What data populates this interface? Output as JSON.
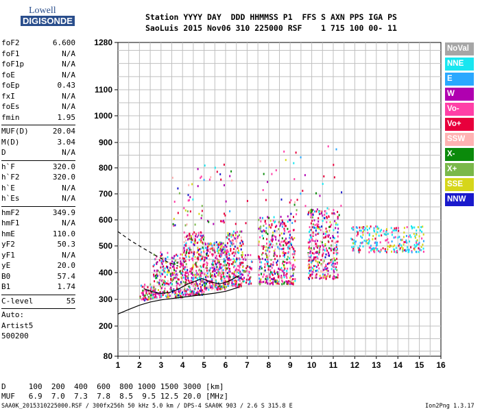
{
  "logo": {
    "line1": "Lowell",
    "line2": "DIGISONDE"
  },
  "header": {
    "line1": "Station YYYY DAY  DDD HHMMSS P1  FFS S AXN PPS IGA PS",
    "line2": "SaoLuis 2015 Nov06 310 225000 RSF    1 715 100 00- 11"
  },
  "params": [
    {
      "name": "foF2",
      "value": "6.600"
    },
    {
      "name": "foF1",
      "value": "N/A"
    },
    {
      "name": "foF1p",
      "value": "N/A"
    },
    {
      "name": "foE",
      "value": "N/A"
    },
    {
      "name": "foEp",
      "value": "0.43"
    },
    {
      "name": "fxI",
      "value": "N/A"
    },
    {
      "name": "foEs",
      "value": "N/A"
    },
    {
      "name": "fmin",
      "value": "1.95"
    },
    {
      "name": "MUF(D)",
      "value": "20.04"
    },
    {
      "name": "M(D)",
      "value": "3.04"
    },
    {
      "name": "D",
      "value": "N/A"
    },
    {
      "name": "h`F",
      "value": "320.0"
    },
    {
      "name": "h`F2",
      "value": "320.0"
    },
    {
      "name": "h`E",
      "value": "N/A"
    },
    {
      "name": "h`Es",
      "value": "N/A"
    },
    {
      "name": "hmF2",
      "value": "349.9"
    },
    {
      "name": "hmF1",
      "value": "N/A"
    },
    {
      "name": "hmE",
      "value": "110.0"
    },
    {
      "name": "yF2",
      "value": "50.3"
    },
    {
      "name": "yF1",
      "value": "N/A"
    },
    {
      "name": "yE",
      "value": "20.0"
    },
    {
      "name": "B0",
      "value": "57.4"
    },
    {
      "name": "B1",
      "value": "1.74"
    },
    {
      "name": "C-level",
      "value": "55"
    },
    {
      "name": "Auto:",
      "value": ""
    },
    {
      "name": "Artist5",
      "value": ""
    },
    {
      "name": "500200",
      "value": ""
    }
  ],
  "legend": [
    {
      "label": "NoVal",
      "color": "#a6a6a6"
    },
    {
      "label": "NNE",
      "color": "#19e6f0"
    },
    {
      "label": "E",
      "color": "#2aa8ff"
    },
    {
      "label": "W",
      "color": "#b000b0"
    },
    {
      "label": "Vo-",
      "color": "#ff3fa7"
    },
    {
      "label": "Vo+",
      "color": "#e8003c"
    },
    {
      "label": "SSW",
      "color": "#ffb2b2"
    },
    {
      "label": "X-",
      "color": "#0b8a0b"
    },
    {
      "label": "X+",
      "color": "#7ab84a"
    },
    {
      "label": "SSE",
      "color": "#d6d61a"
    },
    {
      "label": "NNW",
      "color": "#1a1acc"
    }
  ],
  "footer": {
    "line1": "D     100  200  400  600  800 1000 1500 3000 [km]",
    "line2": "MUF   6.9  7.0  7.3  7.8  8.5  9.5 12.5 20.0 [MHz]",
    "bottom": "SAA0K_2015310225000.RSF / 300fx256h 50 kHz 5.0 km / DPS-4 SAA0K 903 / 2.6 S 315.8 E",
    "version": "Ion2Png 1.3.17"
  },
  "chart_data": {
    "type": "scatter",
    "x_ticks": [
      "1",
      "2",
      "3",
      "4",
      "5",
      "6",
      "7",
      "8",
      "9",
      "10",
      "11",
      "12",
      "13",
      "14",
      "15",
      "16"
    ],
    "y_ticks": [
      "80",
      "200",
      "300",
      "400",
      "500",
      "600",
      "700",
      "800",
      "900",
      "1000",
      "1100",
      "1280"
    ],
    "xlim": [
      1,
      16
    ],
    "ylim": [
      80,
      1280
    ],
    "grid": true,
    "clusters": [
      {
        "x": [
          2.0,
          2.6
        ],
        "y": [
          300,
          360
        ],
        "density": 60
      },
      {
        "x": [
          2.6,
          4.0
        ],
        "y": [
          310,
          480
        ],
        "density": 260
      },
      {
        "x": [
          4.0,
          5.0
        ],
        "y": [
          320,
          560
        ],
        "density": 320
      },
      {
        "x": [
          5.0,
          6.0
        ],
        "y": [
          340,
          520
        ],
        "density": 300
      },
      {
        "x": [
          6.0,
          6.8
        ],
        "y": [
          350,
          560
        ],
        "density": 220
      },
      {
        "x": [
          6.8,
          7.2
        ],
        "y": [
          360,
          470
        ],
        "density": 40
      },
      {
        "x": [
          7.5,
          9.2
        ],
        "y": [
          360,
          620
        ],
        "density": 380
      },
      {
        "x": [
          9.8,
          11.2
        ],
        "y": [
          380,
          650
        ],
        "density": 340
      },
      {
        "x": [
          11.8,
          15.2
        ],
        "y": [
          480,
          580
        ],
        "density": 240
      },
      {
        "x": [
          3.5,
          7.0
        ],
        "y": [
          580,
          820
        ],
        "density": 60
      },
      {
        "x": [
          7.5,
          11.5
        ],
        "y": [
          620,
          900
        ],
        "density": 40
      }
    ],
    "profile_solid": [
      [
        1.0,
        245
      ],
      [
        1.5,
        262
      ],
      [
        2.0,
        278
      ],
      [
        2.5,
        290
      ],
      [
        3.0,
        298
      ],
      [
        3.5,
        303
      ],
      [
        4.0,
        308
      ],
      [
        4.5,
        313
      ],
      [
        5.0,
        318
      ],
      [
        5.5,
        323
      ],
      [
        6.0,
        330
      ],
      [
        6.6,
        345
      ]
    ],
    "trace_solid": [
      [
        2.2,
        340
      ],
      [
        2.6,
        328
      ],
      [
        3.0,
        322
      ],
      [
        3.4,
        326
      ],
      [
        3.8,
        338
      ],
      [
        4.2,
        356
      ],
      [
        4.5,
        365
      ],
      [
        4.9,
        378
      ],
      [
        5.3,
        365
      ],
      [
        5.7,
        358
      ],
      [
        6.1,
        366
      ],
      [
        6.6,
        388
      ]
    ],
    "profile_dashed": [
      [
        1.0,
        555
      ],
      [
        1.6,
        520
      ],
      [
        2.2,
        490
      ],
      [
        2.8,
        462
      ],
      [
        3.3,
        440
      ],
      [
        3.8,
        425
      ]
    ]
  }
}
